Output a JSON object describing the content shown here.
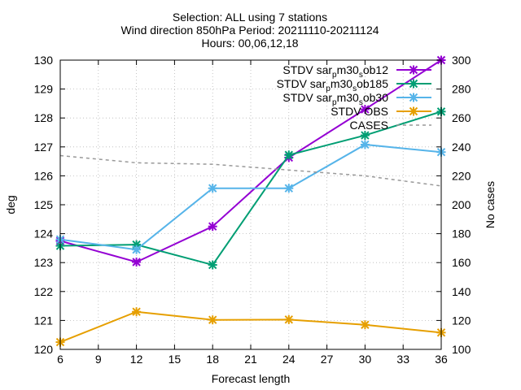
{
  "chart_data": {
    "type": "line",
    "title_lines": [
      "Selection: ALL using     7 stations",
      "Wind direction 850hPa   Period: 20211110-20211124",
      "Hours: 00,06,12,18"
    ],
    "xlabel": "Forecast length",
    "ylabel": "deg",
    "y2label": "No cases",
    "x": [
      6,
      12,
      18,
      24,
      30,
      36
    ],
    "xlim": [
      6,
      36
    ],
    "xticks": [
      6,
      9,
      12,
      15,
      18,
      21,
      24,
      27,
      30,
      33,
      36
    ],
    "ylim": [
      120,
      130
    ],
    "yticks": [
      120,
      121,
      122,
      123,
      124,
      125,
      126,
      127,
      128,
      129,
      130
    ],
    "y2lim": [
      100,
      300
    ],
    "y2ticks": [
      100,
      120,
      140,
      160,
      180,
      200,
      220,
      240,
      260,
      280,
      300
    ],
    "grid": true,
    "legend_position": "top-right",
    "series": [
      {
        "name": "STDV sar_p m30_s ob12",
        "legend": {
          "t1": "STDV sar",
          "s1": "p",
          "t2": "m30",
          "s2": "s",
          "t3": "ob12"
        },
        "color": "#9400d3",
        "axis": "y",
        "values": [
          123.75,
          123.02,
          124.25,
          126.63,
          128.3,
          130.0
        ]
      },
      {
        "name": "STDV sar_p m30_s ob185",
        "legend": {
          "t1": "STDV sar",
          "s1": "p",
          "t2": "m30",
          "s2": "s",
          "t3": "ob185"
        },
        "color": "#009e73",
        "axis": "y",
        "values": [
          123.58,
          123.62,
          122.92,
          126.72,
          127.4,
          128.22
        ]
      },
      {
        "name": "STDV sar_p m30_s ob30",
        "legend": {
          "t1": "STDV sar",
          "s1": "p",
          "t2": "m30",
          "s2": "s",
          "t3": "ob30"
        },
        "color": "#56b4e9",
        "axis": "y",
        "values": [
          123.8,
          123.45,
          125.57,
          125.57,
          127.08,
          126.82
        ]
      },
      {
        "name": "STDV OBS",
        "color": "#e69f00",
        "axis": "y",
        "values": [
          120.25,
          121.3,
          121.02,
          121.03,
          120.85,
          120.58
        ]
      },
      {
        "name": "CASES",
        "color": "#999999",
        "axis": "y2",
        "dashed": true,
        "values": [
          234,
          229,
          228,
          224,
          220,
          213
        ]
      }
    ]
  }
}
